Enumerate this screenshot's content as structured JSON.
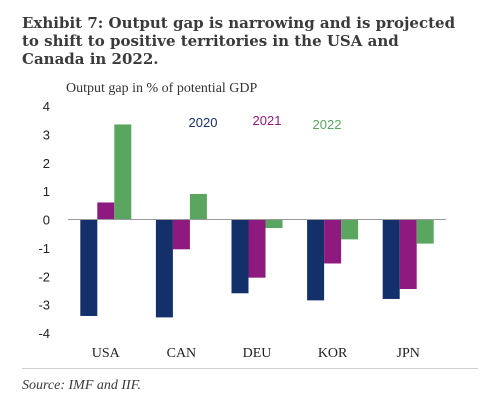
{
  "title": "Exhibit 7: Output gap is narrowing and is projected to shift to positive territories in the USA and Canada in 2022.",
  "source": "Source: IMF and IIF.",
  "colors": {
    "2020": "#14306b",
    "2021": "#8e1a80",
    "2022": "#5aa55f"
  },
  "chart_data": {
    "type": "bar",
    "ylabel": "Output gap in % of potential GDP",
    "categories": [
      "USA",
      "CAN",
      "DEU",
      "KOR",
      "JPN"
    ],
    "ylim": [
      -4,
      4
    ],
    "yticks": [
      4,
      3,
      2,
      1,
      0,
      -1,
      -2,
      -3,
      -4
    ],
    "legend_position": "top-right",
    "grid": false,
    "series": [
      {
        "name": "2020",
        "values": [
          -3.4,
          -3.45,
          -2.6,
          -2.85,
          -2.8
        ]
      },
      {
        "name": "2021",
        "values": [
          0.6,
          -1.05,
          -2.05,
          -1.55,
          -2.45
        ]
      },
      {
        "name": "2022",
        "values": [
          3.35,
          0.9,
          -0.3,
          -0.7,
          -0.85
        ]
      }
    ]
  }
}
